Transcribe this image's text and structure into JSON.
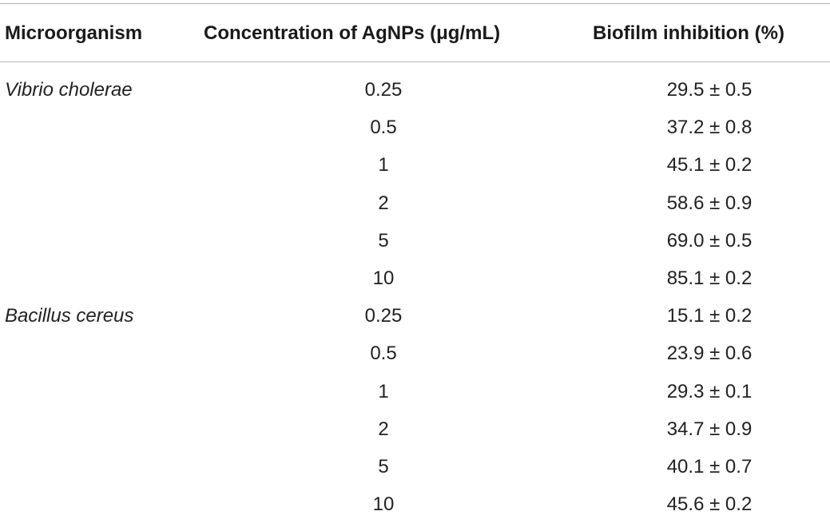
{
  "table": {
    "headers": [
      "Microorganism",
      "Concentration of AgNPs (μg/mL)",
      "Biofilm inhibition (%)"
    ],
    "rows": [
      {
        "organism": "Vibrio cholerae",
        "concentration": "0.25",
        "inhibition": "29.5 ± 0.5"
      },
      {
        "organism": "",
        "concentration": "0.5",
        "inhibition": "37.2 ± 0.8"
      },
      {
        "organism": "",
        "concentration": "1",
        "inhibition": "45.1 ± 0.2"
      },
      {
        "organism": "",
        "concentration": "2",
        "inhibition": "58.6 ± 0.9"
      },
      {
        "organism": "",
        "concentration": "5",
        "inhibition": "69.0 ± 0.5"
      },
      {
        "organism": "",
        "concentration": "10",
        "inhibition": "85.1 ± 0.2"
      },
      {
        "organism": "Bacillus cereus",
        "concentration": "0.25",
        "inhibition": "15.1 ± 0.2"
      },
      {
        "organism": "",
        "concentration": "0.5",
        "inhibition": "23.9 ± 0.6"
      },
      {
        "organism": "",
        "concentration": "1",
        "inhibition": "29.3 ± 0.1"
      },
      {
        "organism": "",
        "concentration": "2",
        "inhibition": "34.7 ± 0.9"
      },
      {
        "organism": "",
        "concentration": "5",
        "inhibition": "40.1 ± 0.7"
      },
      {
        "organism": "",
        "concentration": "10",
        "inhibition": "45.6 ± 0.2"
      }
    ]
  }
}
